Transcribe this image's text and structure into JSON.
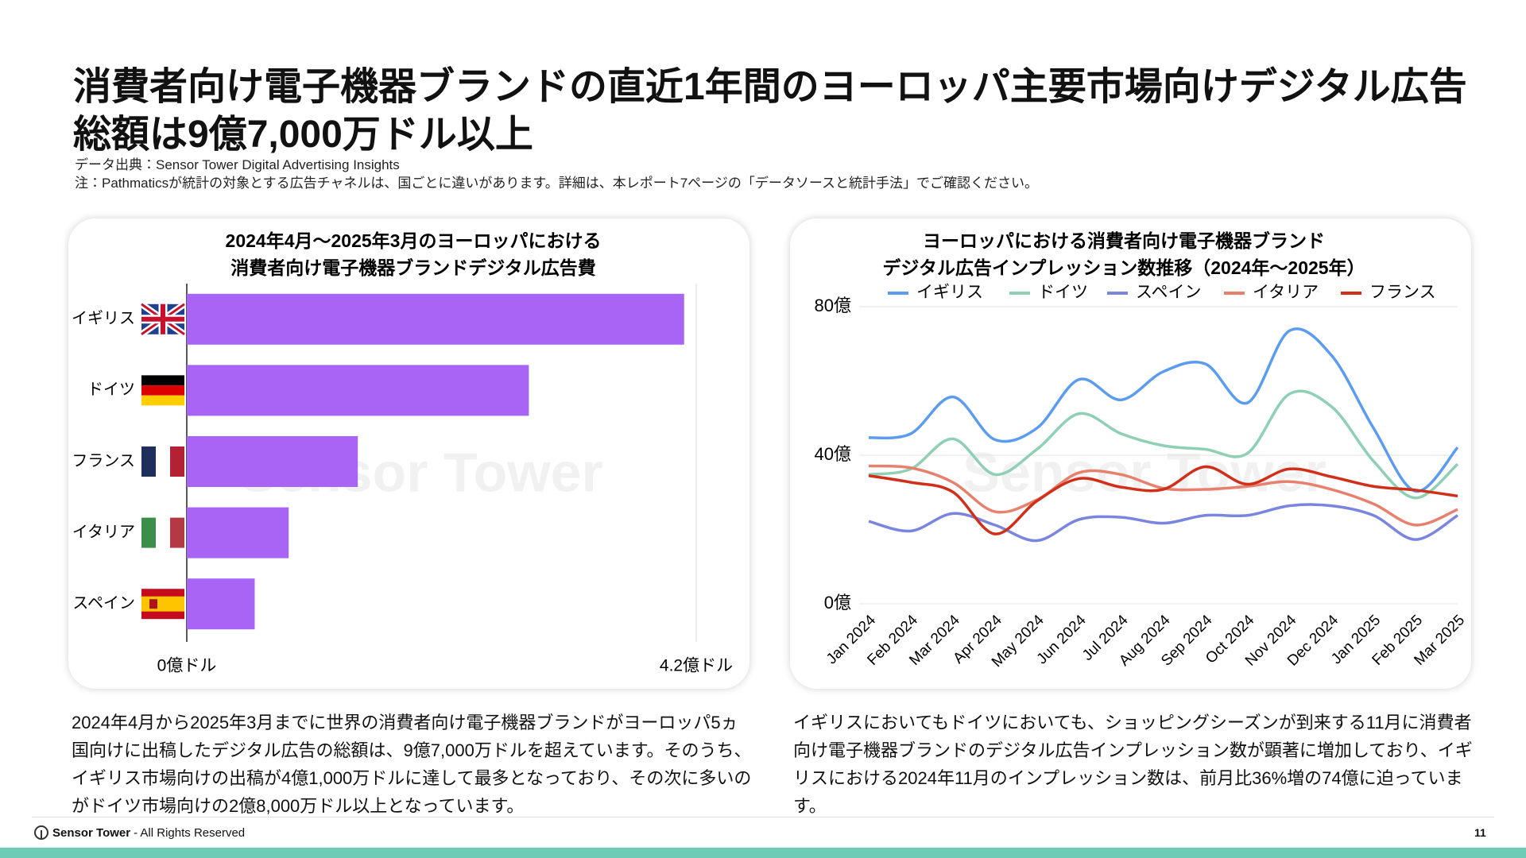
{
  "header": {
    "title": "消費者向け電子機器ブランドの直近1年間のヨーロッパ主要市場向けデジタル広告総額は9億7,000万ドル以上",
    "source": "データ出典：Sensor Tower Digital Advertising Insights",
    "note": "注：Pathmaticsが統計の対象とする広告チャネルは、国ごとに違いがあります。詳細は、本レポート7ページの「データソースと統計手法」でご確認ください。"
  },
  "watermark": "Sensor Tower",
  "chart_data": [
    {
      "type": "bar",
      "orientation": "horizontal",
      "title": [
        "2024年4月～2025年3月のヨーロッパにおける",
        "消費者向け電子機器ブランドデジタル広告費"
      ],
      "categories": [
        "イギリス",
        "ドイツ",
        "フランス",
        "イタリア",
        "スペイン"
      ],
      "values": [
        4.1,
        2.82,
        1.41,
        0.84,
        0.56
      ],
      "color": "#a865f5",
      "xlim": [
        0,
        4.2
      ],
      "xticks": [
        {
          "value": 0,
          "label": "0億ドル"
        },
        {
          "value": 4.2,
          "label": "4.2億ドル"
        }
      ]
    },
    {
      "type": "line",
      "title": [
        "ヨーロッパにおける消費者向け電子機器ブランド",
        "デジタル広告インプレッション数推移（2024年～2025年）"
      ],
      "categories": [
        "Jan 2024",
        "Feb 2024",
        "Mar 2024",
        "Apr 2024",
        "May 2024",
        "Jun 2024",
        "Jul 2024",
        "Aug 2024",
        "Sep 2024",
        "Oct 2024",
        "Nov 2024",
        "Dec 2024",
        "Jan 2025",
        "Feb 2025",
        "Mar 2025"
      ],
      "series": [
        {
          "name": "イギリス",
          "color": "#5b9cf0",
          "values": [
            44.7,
            45.8,
            55.7,
            44.2,
            47.3,
            60.4,
            54.9,
            62.5,
            64.6,
            54.1,
            73.5,
            66.9,
            47.3,
            30.3,
            42.1
          ]
        },
        {
          "name": "ドイツ",
          "color": "#8fd0b5",
          "values": [
            34.8,
            36.3,
            44.4,
            34.8,
            41.6,
            51.2,
            45.8,
            42.6,
            41.6,
            40.5,
            56.5,
            53.1,
            38.4,
            28.5,
            37.6
          ]
        },
        {
          "name": "スペイン",
          "color": "#7a85e0",
          "values": [
            22.2,
            19.6,
            24.3,
            21.2,
            17.0,
            22.7,
            23.3,
            21.7,
            23.8,
            23.8,
            26.4,
            26.4,
            23.8,
            17.3,
            23.8
          ]
        },
        {
          "name": "イタリア",
          "color": "#e8806e",
          "values": [
            37.1,
            36.6,
            32.7,
            24.8,
            28.0,
            35.3,
            34.8,
            31.1,
            30.8,
            31.6,
            32.9,
            30.8,
            26.9,
            21.2,
            25.4
          ]
        },
        {
          "name": "フランス",
          "color": "#d0301a",
          "values": [
            34.5,
            32.7,
            30.1,
            18.8,
            27.7,
            33.7,
            31.4,
            30.8,
            36.9,
            32.2,
            36.3,
            34.2,
            31.6,
            30.6,
            29.0
          ]
        }
      ],
      "ylim": [
        0,
        80
      ],
      "yticks": [
        {
          "value": 0,
          "label": "0億"
        },
        {
          "value": 40,
          "label": "40億"
        },
        {
          "value": 80,
          "label": "80億"
        }
      ],
      "grid": true,
      "legend": "top"
    }
  ],
  "paragraphs": [
    "2024年4月から2025年3月までに世界の消費者向け電子機器ブランドがヨーロッパ5ヵ国向けに出稿したデジタル広告の総額は、9億7,000万ドルを超えています。そのうち、イギリス市場向けの出稿が4億1,000万ドルに達して最多となっており、その次に多いのがドイツ市場向けの2億8,000万ドル以上となっています。",
    "イギリスにおいてもドイツにおいても、ショッピングシーズンが到来する11月に消費者向け電子機器ブランドのデジタル広告インプレッション数が顕著に増加しており、イギリスにおける2024年11月のインプレッション数は、前月比36%増の74億に迫っています。"
  ],
  "footer": {
    "brand": "Sensor Tower",
    "rights": "- All Rights Reserved",
    "page": "11"
  }
}
